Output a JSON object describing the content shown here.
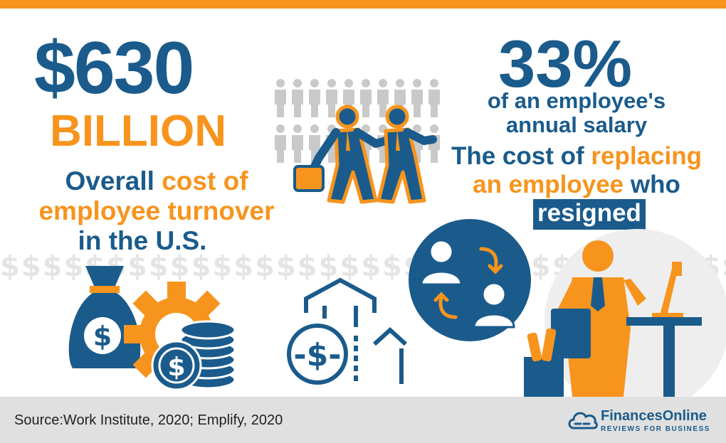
{
  "left_stat": {
    "amount": "$630",
    "unit": "BILLION",
    "desc_1a": "Overall ",
    "desc_1b": "cost of",
    "desc_2": "employee turnover",
    "desc_3": "in the U.S."
  },
  "right_stat": {
    "percent": "33%",
    "line_1": "of an employee's",
    "line_2": "annual salary",
    "line_3a": "The cost of ",
    "line_3b": "replacing",
    "line_4a": "an employee",
    "line_4b": " who",
    "line_5": "resigned"
  },
  "footer": {
    "source": "Source:Work Institute, 2020; Emplify, 2020",
    "logo_name": "FinancesOnline",
    "logo_tagline": "REVIEWS FOR BUSINESS"
  },
  "icons": [
    "crowd-icon",
    "walking-businessmen-icon",
    "money-bag-icon",
    "gear-icon",
    "coins-icon",
    "dollar-growth-icon",
    "employee-swap-icon",
    "office-worker-icon",
    "cloud-logo-icon"
  ],
  "colors": {
    "blue": "#1a5b8c",
    "orange": "#f7941d",
    "gray": "#e0e0e0"
  }
}
